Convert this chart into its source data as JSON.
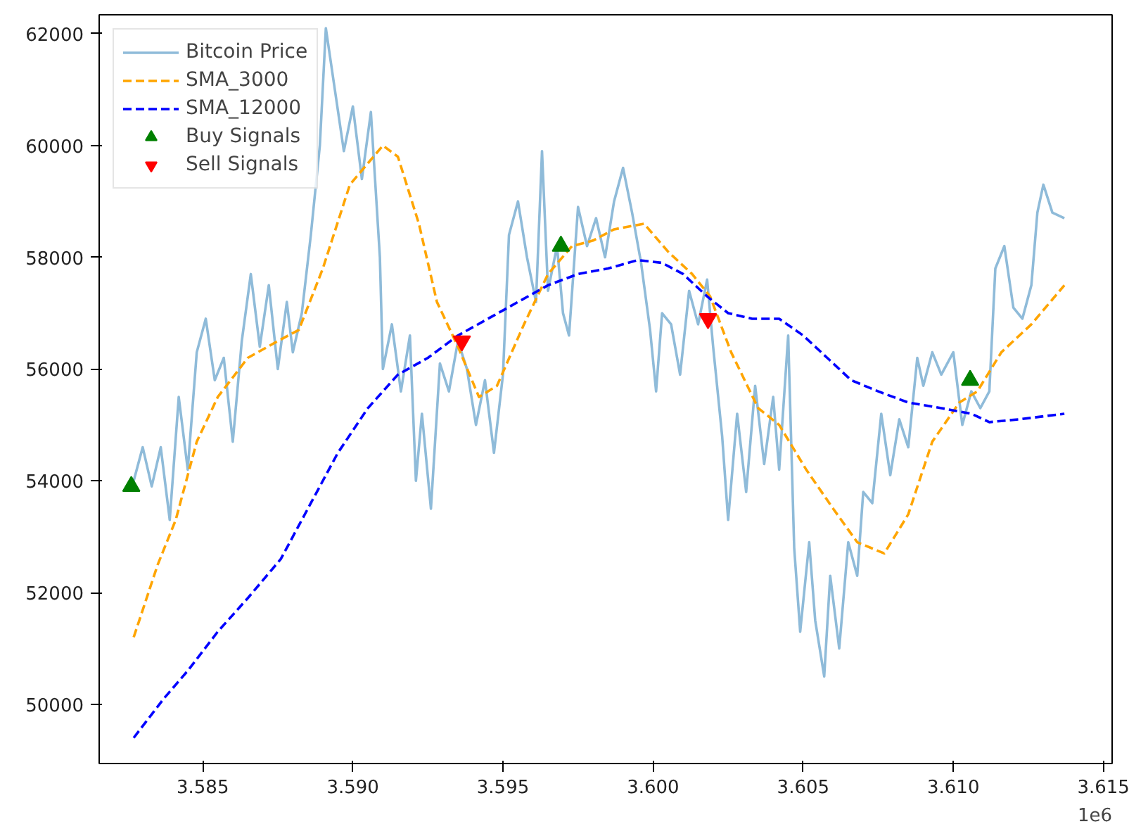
{
  "chart_data": {
    "type": "line",
    "xlim": [
      3.58155,
      3.61529
    ],
    "ylim": [
      48940,
      62340
    ],
    "xticks": [
      3.585,
      {
        "value": 3.59,
        "label": "3.590"
      },
      3.595,
      {
        "value": 3.6,
        "label": "3.600"
      },
      3.605,
      {
        "value": 3.61,
        "label": "3.610"
      },
      3.615
    ],
    "yticks": [
      50000,
      52000,
      54000,
      56000,
      58000,
      60000,
      62000
    ],
    "grid": false,
    "legend": "top left",
    "annotations": [
      "1e6"
    ],
    "series": [
      {
        "name": "Bitcoin Price",
        "line_style": "solid",
        "color": "#8fbbd9",
        "x": [
          3.5827,
          3.583,
          3.5833,
          3.5836,
          3.5839,
          3.5842,
          3.5845,
          3.5848,
          3.5851,
          3.5854,
          3.5857,
          3.586,
          3.5863,
          3.5866,
          3.5869,
          3.5872,
          3.5875,
          3.5878,
          3.588,
          3.5883,
          3.5886,
          3.5889,
          3.5891,
          3.5894,
          3.5897,
          3.59,
          3.5903,
          3.5906,
          3.5909,
          3.591,
          3.5913,
          3.5916,
          3.5919,
          3.5921,
          3.5923,
          3.5926,
          3.5929,
          3.5932,
          3.5935,
          3.5938,
          3.5941,
          3.5944,
          3.5947,
          3.595,
          3.5952,
          3.5955,
          3.5958,
          3.5961,
          3.5963,
          3.5965,
          3.5968,
          3.597,
          3.5972,
          3.5975,
          3.5978,
          3.5981,
          3.5984,
          3.5987,
          3.599,
          3.5993,
          3.5996,
          3.5999,
          3.6001,
          3.6003,
          3.6006,
          3.6009,
          3.6012,
          3.6015,
          3.6018,
          3.602,
          3.6023,
          3.6025,
          3.6028,
          3.6031,
          3.6034,
          3.6037,
          3.604,
          3.6042,
          3.6045,
          3.6047,
          3.6049,
          3.6052,
          3.6054,
          3.6057,
          3.6059,
          3.6062,
          3.6065,
          3.6068,
          3.607,
          3.6073,
          3.6076,
          3.6079,
          3.6082,
          3.6085,
          3.6088,
          3.609,
          3.6093,
          3.6096,
          3.61,
          3.6103,
          3.6106,
          3.6109,
          3.6112,
          3.6114,
          3.6117,
          3.612,
          3.6123,
          3.6126,
          3.6128,
          3.613,
          3.6133,
          3.6137
        ],
        "values": [
          54000,
          54600,
          53900,
          54600,
          53300,
          55500,
          54200,
          56300,
          56900,
          55800,
          56200,
          54700,
          56500,
          57700,
          56400,
          57500,
          56000,
          57200,
          56300,
          57000,
          58400,
          60000,
          62100,
          61000,
          59900,
          60700,
          59400,
          60600,
          58000,
          56000,
          56800,
          55600,
          56600,
          54000,
          55200,
          53500,
          56100,
          55600,
          56500,
          56000,
          55000,
          55800,
          54500,
          55900,
          58400,
          59000,
          58000,
          57200,
          59900,
          57400,
          58200,
          57000,
          56600,
          58900,
          58200,
          58700,
          58000,
          59000,
          59600,
          58800,
          57900,
          56700,
          55600,
          57000,
          56800,
          55900,
          57400,
          56800,
          57600,
          56400,
          54800,
          53300,
          55200,
          53800,
          55700,
          54300,
          55500,
          54200,
          56600,
          52800,
          51300,
          52900,
          51500,
          50500,
          52300,
          51000,
          52900,
          52300,
          53800,
          53600,
          55200,
          54100,
          55100,
          54600,
          56200,
          55700,
          56300,
          55900,
          56300,
          55000,
          55600,
          55300,
          55600,
          57800,
          58200,
          57100,
          56900,
          57500,
          58800,
          59300,
          58800,
          58700
        ]
      },
      {
        "name": "SMA_3000",
        "line_style": "dashed",
        "color": "#ffa500",
        "x": [
          3.5827,
          3.5835,
          3.5841,
          3.5848,
          3.5855,
          3.5865,
          3.5875,
          3.5882,
          3.589,
          3.5899,
          3.591,
          3.5915,
          3.5922,
          3.5928,
          3.5935,
          3.5942,
          3.5948,
          3.5957,
          3.5965,
          3.5973,
          3.598,
          3.5987,
          3.5997,
          3.6005,
          3.6013,
          3.6019,
          3.6026,
          3.6035,
          3.6042,
          3.6051,
          3.606,
          3.6068,
          3.6077,
          3.6085,
          3.6093,
          3.6102,
          3.6108,
          3.6116,
          3.6126,
          3.6137
        ],
        "values": [
          51200,
          52500,
          53300,
          54700,
          55500,
          56200,
          56500,
          56700,
          57800,
          59300,
          60000,
          59800,
          58600,
          57200,
          56400,
          55500,
          55700,
          56800,
          57700,
          58200,
          58300,
          58500,
          58600,
          58100,
          57700,
          57300,
          56300,
          55300,
          55000,
          54200,
          53500,
          52900,
          52700,
          53400,
          54700,
          55400,
          55600,
          56300,
          56800,
          57500
        ]
      },
      {
        "name": "SMA_12000",
        "line_style": "dashed",
        "color": "#0000ff",
        "x": [
          3.5827,
          3.5837,
          3.5845,
          3.5855,
          3.5865,
          3.5876,
          3.5885,
          3.5895,
          3.5905,
          3.5915,
          3.5925,
          3.5935,
          3.5945,
          3.5955,
          3.5965,
          3.5975,
          3.5985,
          3.5995,
          3.6003,
          3.601,
          3.6018,
          3.6025,
          3.6033,
          3.6042,
          3.605,
          3.6058,
          3.6066,
          3.6075,
          3.6085,
          3.6096,
          3.6106,
          3.6112,
          3.6122,
          3.6137
        ],
        "values": [
          49400,
          50100,
          50600,
          51300,
          51900,
          52600,
          53500,
          54500,
          55300,
          55900,
          56200,
          56600,
          56900,
          57200,
          57500,
          57700,
          57800,
          57950,
          57900,
          57700,
          57300,
          57000,
          56900,
          56900,
          56600,
          56200,
          55800,
          55600,
          55400,
          55300,
          55200,
          55050,
          55100,
          55200
        ]
      },
      {
        "name": "Buy Signals",
        "type": "scatter",
        "marker": "triangle",
        "color": "#008000",
        "x": [
          3.58262,
          3.59693,
          3.61056
        ],
        "values": [
          53900,
          58200,
          55800
        ]
      },
      {
        "name": "Sell Signals",
        "type": "scatter",
        "marker": "triangle_down",
        "color": "#ff0000",
        "x": [
          3.59363,
          3.60183
        ],
        "values": [
          56500,
          56900
        ]
      }
    ]
  }
}
